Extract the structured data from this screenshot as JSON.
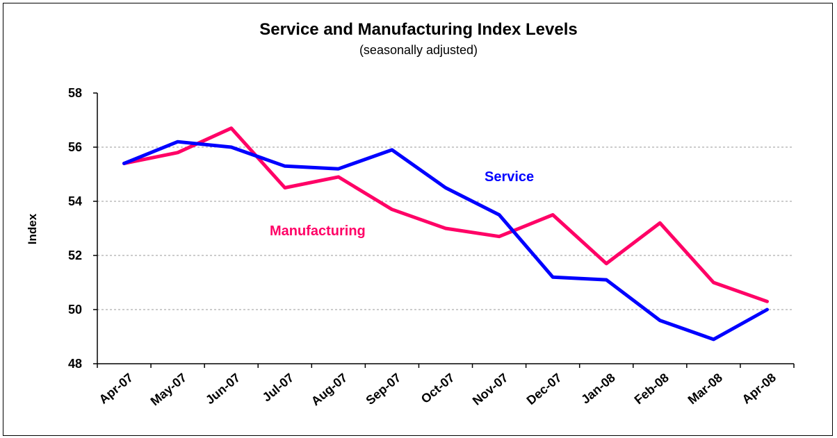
{
  "chart_data": {
    "type": "line",
    "title": "Service and Manufacturing Index Levels",
    "subtitle": "(seasonally adjusted)",
    "xlabel": "",
    "ylabel": "Index",
    "categories": [
      "Apr-07",
      "May-07",
      "Jun-07",
      "Jul-07",
      "Aug-07",
      "Sep-07",
      "Oct-07",
      "Nov-07",
      "Dec-07",
      "Jan-08",
      "Feb-08",
      "Mar-08",
      "Apr-08"
    ],
    "ylim": [
      48,
      58
    ],
    "yticks": [
      "48",
      "50",
      "52",
      "54",
      "56",
      "58"
    ],
    "grid": true,
    "series": [
      {
        "name": "Service",
        "color": "#0000FF",
        "values": [
          55.4,
          56.2,
          56.0,
          55.3,
          55.2,
          55.9,
          54.5,
          53.5,
          51.2,
          51.1,
          49.6,
          48.9,
          50.0
        ]
      },
      {
        "name": "Manufacturing",
        "color": "#FF0066",
        "values": [
          55.4,
          55.8,
          56.7,
          54.5,
          54.9,
          53.7,
          53.0,
          52.7,
          53.5,
          51.7,
          53.2,
          51.0,
          50.3
        ]
      }
    ]
  }
}
